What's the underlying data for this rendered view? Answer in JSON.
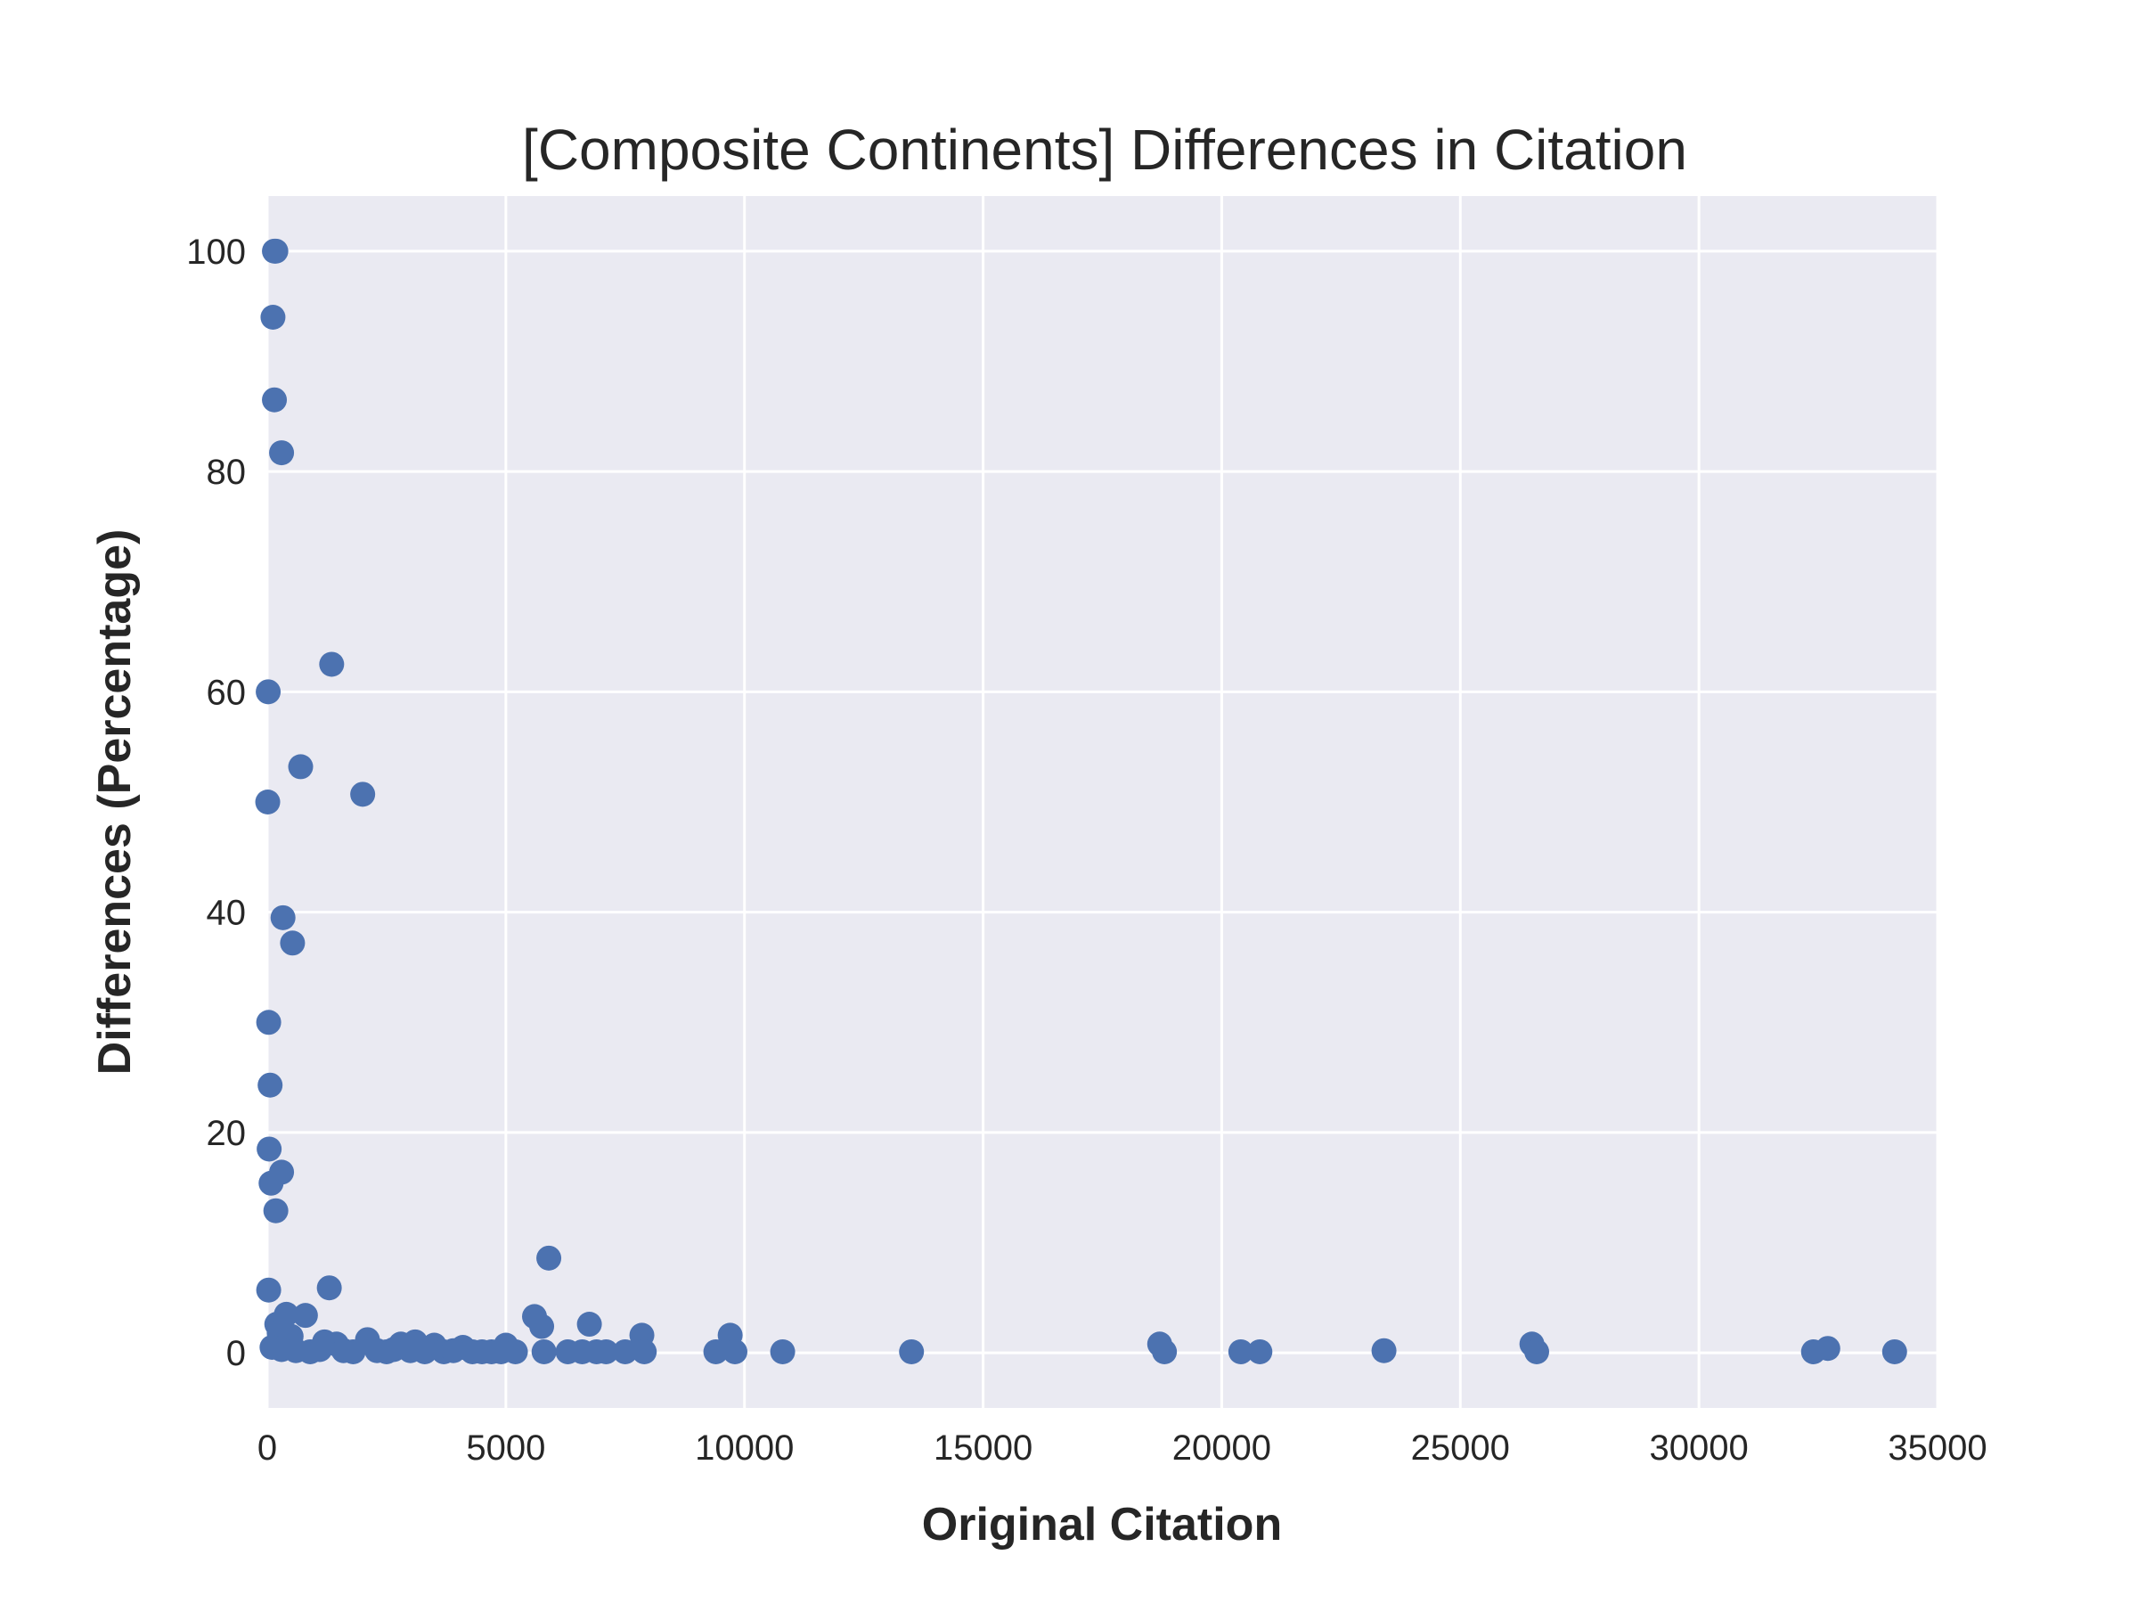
{
  "chart_data": {
    "type": "scatter",
    "title": "[Composite Continents] Differences in Citation",
    "xlabel": "Original Citation",
    "ylabel": "Differences (Percentage)",
    "xlim": [
      0,
      35000
    ],
    "ylim": [
      -5,
      105
    ],
    "xticks": [
      0,
      5000,
      10000,
      15000,
      20000,
      25000,
      30000,
      35000
    ],
    "yticks": [
      0,
      20,
      40,
      60,
      80,
      100
    ],
    "grid": true,
    "color": "#4c72b0",
    "background": "#eaeaf2",
    "series": [
      {
        "points": [
          [
            150,
            100
          ],
          [
            180,
            100
          ],
          [
            120,
            94
          ],
          [
            150,
            86.5
          ],
          [
            300,
            81.7
          ],
          [
            1350,
            62.5
          ],
          [
            20,
            60
          ],
          [
            700,
            53.2
          ],
          [
            2000,
            50.7
          ],
          [
            10,
            50
          ],
          [
            330,
            39.5
          ],
          [
            530,
            37.2
          ],
          [
            30,
            30
          ],
          [
            60,
            24.3
          ],
          [
            40,
            18.5
          ],
          [
            300,
            16.4
          ],
          [
            80,
            15.4
          ],
          [
            180,
            12.9
          ],
          [
            5900,
            8.6
          ],
          [
            30,
            5.7
          ],
          [
            1300,
            5.9
          ],
          [
            5600,
            3.3
          ],
          [
            800,
            3.4
          ],
          [
            400,
            3.5
          ],
          [
            5750,
            2.4
          ],
          [
            6750,
            2.6
          ],
          [
            7850,
            1.6
          ],
          [
            9700,
            1.6
          ],
          [
            200,
            2.6
          ],
          [
            250,
            1.8
          ],
          [
            500,
            1.5
          ],
          [
            2100,
            1.2
          ],
          [
            1200,
            1.0
          ],
          [
            3100,
            1.0
          ],
          [
            3500,
            0.7
          ],
          [
            5000,
            0.7
          ],
          [
            2800,
            0.8
          ],
          [
            1450,
            0.8
          ],
          [
            4100,
            0.5
          ],
          [
            18700,
            0.8
          ],
          [
            26500,
            0.8
          ],
          [
            32700,
            0.4
          ],
          [
            100,
            0.5
          ],
          [
            300,
            0.3
          ],
          [
            600,
            0.2
          ],
          [
            900,
            0.1
          ],
          [
            1100,
            0.3
          ],
          [
            1600,
            0.2
          ],
          [
            1800,
            0.1
          ],
          [
            2300,
            0.2
          ],
          [
            2500,
            0.1
          ],
          [
            2650,
            0.3
          ],
          [
            3000,
            0.2
          ],
          [
            3300,
            0.1
          ],
          [
            3700,
            0.1
          ],
          [
            3900,
            0.2
          ],
          [
            4300,
            0.1
          ],
          [
            4500,
            0.1
          ],
          [
            4700,
            0.1
          ],
          [
            4900,
            0.1
          ],
          [
            5200,
            0.1
          ],
          [
            5800,
            0.1
          ],
          [
            6300,
            0.1
          ],
          [
            6600,
            0.1
          ],
          [
            6900,
            0.1
          ],
          [
            7100,
            0.1
          ],
          [
            7500,
            0.1
          ],
          [
            7900,
            0.1
          ],
          [
            9400,
            0.1
          ],
          [
            9800,
            0.1
          ],
          [
            10800,
            0.1
          ],
          [
            13500,
            0.1
          ],
          [
            18800,
            0.1
          ],
          [
            20400,
            0.1
          ],
          [
            20800,
            0.1
          ],
          [
            23400,
            0.2
          ],
          [
            26600,
            0.1
          ],
          [
            32400,
            0.1
          ],
          [
            34100,
            0.1
          ]
        ]
      }
    ]
  }
}
